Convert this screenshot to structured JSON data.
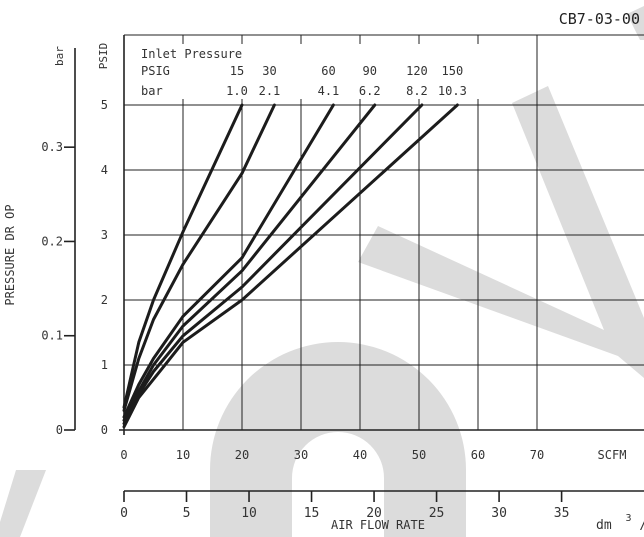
{
  "figure_code": "CB7-03-00",
  "chart_data": {
    "type": "line",
    "legend_title": "Inlet Pressure",
    "legend_unit_psig": "PSIG",
    "legend_unit_bar": "bar",
    "series": [
      {
        "psig": "15",
        "bar": "1.0",
        "x": [
          0,
          2.5,
          5,
          10,
          20
        ],
        "y": [
          0.35,
          1.35,
          2.0,
          3.05,
          5.0
        ]
      },
      {
        "psig": "30",
        "bar": "2.1",
        "x": [
          0,
          2.5,
          5,
          10,
          20,
          25.5
        ],
        "y": [
          0.3,
          1.1,
          1.7,
          2.55,
          3.95,
          5.0
        ]
      },
      {
        "psig": "60",
        "bar": "4.1",
        "x": [
          0,
          2.5,
          5,
          10,
          20,
          35.5
        ],
        "y": [
          0.2,
          0.7,
          1.1,
          1.75,
          2.65,
          5.0
        ]
      },
      {
        "psig": "90",
        "bar": "6.2",
        "x": [
          0,
          2.5,
          5,
          10,
          20,
          42.5
        ],
        "y": [
          0.15,
          0.6,
          1.0,
          1.6,
          2.45,
          5.0
        ]
      },
      {
        "psig": "120",
        "bar": "8.2",
        "x": [
          0,
          2.5,
          5,
          10,
          20,
          50.5
        ],
        "y": [
          0.1,
          0.55,
          0.9,
          1.45,
          2.2,
          5.0
        ]
      },
      {
        "psig": "150",
        "bar": "10.3",
        "x": [
          0,
          2.5,
          6.5,
          10,
          20,
          56.5
        ],
        "y": [
          0.05,
          0.5,
          0.95,
          1.35,
          2.0,
          5.0
        ]
      }
    ],
    "x_scfm": {
      "unit": "SCFM",
      "ticks": [
        "0",
        "10",
        "20",
        "30",
        "40",
        "50",
        "60",
        "70"
      ],
      "range": [
        0,
        77
      ]
    },
    "x_dm3s": {
      "unit": "dm",
      "unit_sup": "3",
      "unit_tail": "/s",
      "ticks": [
        "0",
        "5",
        "10",
        "15",
        "20",
        "25",
        "30",
        "35"
      ]
    },
    "xlabel": "AIR FLOW RATE",
    "y_psid": {
      "unit": "PSID",
      "ticks": [
        "0",
        "1",
        "2",
        "3",
        "4",
        "5"
      ],
      "range": [
        0,
        5.3
      ]
    },
    "y_bar": {
      "unit": "bar",
      "ticks": [
        "0",
        "0.1",
        "0.2",
        "0.3"
      ],
      "tick_values": [
        0,
        0.1,
        0.2,
        0.3
      ]
    },
    "ylabel": "PRESSURE DR OP",
    "grid": true
  }
}
